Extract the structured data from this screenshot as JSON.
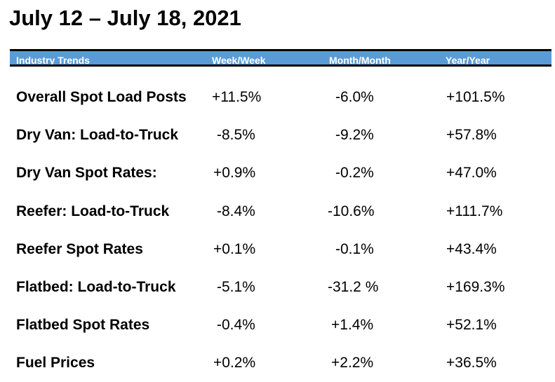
{
  "title": "July 12 – July 18, 2021",
  "header": {
    "col1": "Industry Trends",
    "col2": "Week/Week",
    "col3": "Month/Month",
    "col4": "Year/Year",
    "bar_color": "#5b9bd5"
  },
  "rows": [
    {
      "label": "Overall Spot Load Posts",
      "week": "+11.5%",
      "month": "-6.0%",
      "year": "+101.5%"
    },
    {
      "label": "Dry Van: Load-to-Truck",
      "week": "-8.5%",
      "month": "-9.2%",
      "year": "+57.8%"
    },
    {
      "label": "Dry Van Spot Rates:",
      "week": "+0.9%",
      "month": "-0.2%",
      "year": "+47.0%"
    },
    {
      "label": "Reefer: Load-to-Truck",
      "week": "-8.4%",
      "month": "-10.6%",
      "year": "+111.7%"
    },
    {
      "label": "Reefer Spot Rates",
      "week": "+0.1%",
      "month": "-0.1%",
      "year": "+43.4%"
    },
    {
      "label": "Flatbed: Load-to-Truck",
      "week": "-5.1%",
      "month": "-31.2 %",
      "year": "+169.3%"
    },
    {
      "label": "Flatbed Spot Rates",
      "week": "-0.4%",
      "month": "+1.4%",
      "year": "+52.1%"
    },
    {
      "label": "Fuel Prices",
      "week": "+0.2%",
      "month": "+2.2%",
      "year": "+36.5%"
    }
  ]
}
